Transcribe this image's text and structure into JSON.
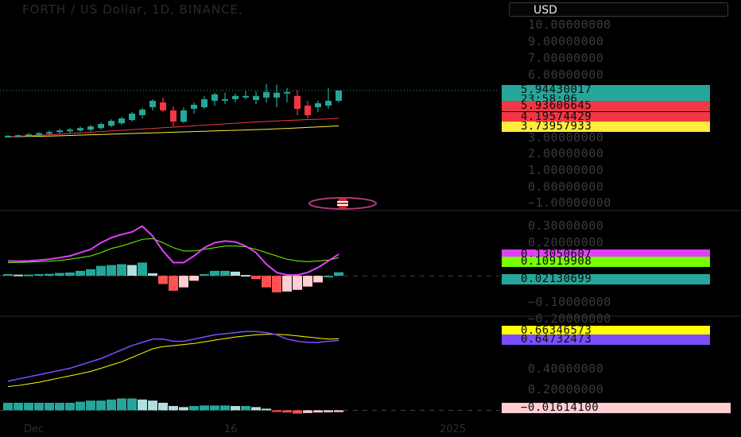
{
  "header": {
    "symbol_title": "FORTH / US Dollar, 1D, BINANCE,",
    "currency_label": "USD"
  },
  "price_axis": {
    "ticks": [
      "10.00000000",
      "9.00000000",
      "7.00000000",
      "6.00000000",
      "3.00000000",
      "2.00000000",
      "1.00000000",
      "0.00000000",
      "−1.00000000"
    ]
  },
  "price_tags": [
    {
      "text": "5.94430017",
      "bg": "#26a69a",
      "fg": "#0b0b0b"
    },
    {
      "text": "23:58:06",
      "bg": "#26a69a",
      "fg": "#0b0b0b"
    },
    {
      "text": "5.93606645",
      "bg": "#f23645",
      "fg": "#0b0b0b"
    },
    {
      "text": "4.19574429",
      "bg": "#f23645",
      "fg": "#0b0b0b"
    },
    {
      "text": "3.73957933",
      "bg": "#ffeb3b",
      "fg": "#0b0b0b"
    }
  ],
  "macd_axis": {
    "ticks": [
      "0.30000000",
      "0.20000000",
      "−0.10000000",
      "−0.20000000"
    ]
  },
  "macd_tags": [
    {
      "text": "0.13050607",
      "bg": "#e040fb",
      "fg": "#0b0b0b"
    },
    {
      "text": "0.10919908",
      "bg": "#76ff03",
      "fg": "#0b0b0b"
    },
    {
      "text": "0.02130699",
      "bg": "#26a69a",
      "fg": "#0b0b0b"
    }
  ],
  "osc_axis": {
    "ticks": [
      "0.40000000",
      "0.20000000"
    ]
  },
  "osc_tags": [
    {
      "text": "0.66346573",
      "bg": "#ffff00",
      "fg": "#0b0b0b"
    },
    {
      "text": "0.64732473",
      "bg": "#7c4dff",
      "fg": "#0b0b0b"
    },
    {
      "text": "−0.01614100",
      "bg": "#ffcdd2",
      "fg": "#0b0b0b"
    }
  ],
  "time_axis": {
    "labels": [
      "Dec",
      "16",
      "2025"
    ]
  },
  "chart_data": [
    {
      "type": "candlestick",
      "title": "FORTH / US Dollar, 1D, BINANCE",
      "ylim": [
        -1,
        10
      ],
      "candles": [
        {
          "o": 3.05,
          "h": 3.15,
          "l": 3.0,
          "c": 3.12
        },
        {
          "o": 3.1,
          "h": 3.2,
          "l": 3.0,
          "c": 3.15
        },
        {
          "o": 3.15,
          "h": 3.3,
          "l": 3.05,
          "c": 3.2
        },
        {
          "o": 3.2,
          "h": 3.35,
          "l": 3.1,
          "c": 3.28
        },
        {
          "o": 3.28,
          "h": 3.45,
          "l": 3.15,
          "c": 3.35
        },
        {
          "o": 3.35,
          "h": 3.55,
          "l": 3.25,
          "c": 3.45
        },
        {
          "o": 3.4,
          "h": 3.6,
          "l": 3.3,
          "c": 3.5
        },
        {
          "o": 3.45,
          "h": 3.7,
          "l": 3.35,
          "c": 3.6
        },
        {
          "o": 3.5,
          "h": 3.8,
          "l": 3.4,
          "c": 3.7
        },
        {
          "o": 3.6,
          "h": 3.95,
          "l": 3.5,
          "c": 3.85
        },
        {
          "o": 3.75,
          "h": 4.15,
          "l": 3.65,
          "c": 4.05
        },
        {
          "o": 3.9,
          "h": 4.3,
          "l": 3.8,
          "c": 4.2
        },
        {
          "o": 4.1,
          "h": 4.6,
          "l": 4.0,
          "c": 4.5
        },
        {
          "o": 4.4,
          "h": 4.85,
          "l": 4.2,
          "c": 4.75
        },
        {
          "o": 4.9,
          "h": 5.4,
          "l": 4.7,
          "c": 5.3
        },
        {
          "o": 5.2,
          "h": 5.5,
          "l": 4.6,
          "c": 4.7
        },
        {
          "o": 4.7,
          "h": 4.95,
          "l": 3.7,
          "c": 4.0
        },
        {
          "o": 4.0,
          "h": 4.9,
          "l": 3.9,
          "c": 4.7
        },
        {
          "o": 4.8,
          "h": 5.2,
          "l": 4.5,
          "c": 5.05
        },
        {
          "o": 4.9,
          "h": 5.6,
          "l": 4.8,
          "c": 5.4
        },
        {
          "o": 5.3,
          "h": 5.8,
          "l": 5.0,
          "c": 5.7
        },
        {
          "o": 5.3,
          "h": 5.8,
          "l": 5.1,
          "c": 5.4
        },
        {
          "o": 5.4,
          "h": 5.75,
          "l": 5.2,
          "c": 5.6
        },
        {
          "o": 5.6,
          "h": 5.9,
          "l": 5.4,
          "c": 5.6
        },
        {
          "o": 5.35,
          "h": 5.9,
          "l": 5.1,
          "c": 5.6
        },
        {
          "o": 5.5,
          "h": 6.35,
          "l": 5.2,
          "c": 5.85
        },
        {
          "o": 5.5,
          "h": 6.3,
          "l": 4.9,
          "c": 5.8
        },
        {
          "o": 5.8,
          "h": 6.1,
          "l": 5.2,
          "c": 5.85
        },
        {
          "o": 5.6,
          "h": 5.95,
          "l": 4.4,
          "c": 4.8
        },
        {
          "o": 5.0,
          "h": 5.3,
          "l": 4.2,
          "c": 4.4
        },
        {
          "o": 4.9,
          "h": 5.3,
          "l": 4.6,
          "c": 5.15
        },
        {
          "o": 5.0,
          "h": 6.1,
          "l": 4.8,
          "c": 5.3
        },
        {
          "o": 5.3,
          "h": 5.95,
          "l": 5.2,
          "c": 5.94
        }
      ],
      "series": [
        {
          "name": "MA slow",
          "color": "#ffeb3b",
          "values": [
            3.05,
            3.06,
            3.08,
            3.09,
            3.1,
            3.12,
            3.14,
            3.16,
            3.18,
            3.2,
            3.22,
            3.24,
            3.26,
            3.28,
            3.3,
            3.32,
            3.34,
            3.36,
            3.38,
            3.4,
            3.42,
            3.44,
            3.46,
            3.48,
            3.5,
            3.52,
            3.55,
            3.58,
            3.61,
            3.64,
            3.67,
            3.7,
            3.74
          ]
        },
        {
          "name": "MA fast",
          "color": "#f23645",
          "values": [
            3.05,
            3.08,
            3.12,
            3.15,
            3.18,
            3.22,
            3.26,
            3.3,
            3.34,
            3.38,
            3.42,
            3.46,
            3.5,
            3.54,
            3.58,
            3.62,
            3.66,
            3.7,
            3.74,
            3.78,
            3.82,
            3.86,
            3.9,
            3.94,
            3.98,
            4.01,
            4.04,
            4.07,
            4.1,
            4.13,
            4.15,
            4.17,
            4.2
          ]
        }
      ],
      "last_price": 5.94430017
    },
    {
      "type": "bar",
      "title": "MACD",
      "ylim": [
        -0.23,
        0.38
      ],
      "macd_line": [
        0.09,
        0.088,
        0.09,
        0.095,
        0.1,
        0.11,
        0.12,
        0.14,
        0.16,
        0.2,
        0.23,
        0.25,
        0.265,
        0.3,
        0.24,
        0.15,
        0.08,
        0.08,
        0.12,
        0.17,
        0.2,
        0.21,
        0.205,
        0.18,
        0.14,
        0.07,
        0.02,
        0.005,
        0.005,
        0.02,
        0.05,
        0.09,
        0.1305
      ],
      "signal_line": [
        0.08,
        0.081,
        0.083,
        0.085,
        0.088,
        0.093,
        0.1,
        0.11,
        0.12,
        0.14,
        0.165,
        0.18,
        0.2,
        0.22,
        0.225,
        0.2,
        0.17,
        0.15,
        0.15,
        0.16,
        0.17,
        0.18,
        0.18,
        0.175,
        0.16,
        0.14,
        0.12,
        0.1,
        0.09,
        0.085,
        0.09,
        0.095,
        0.1092
      ],
      "histogram": [
        0.01,
        0.007,
        0.007,
        0.01,
        0.012,
        0.017,
        0.02,
        0.03,
        0.04,
        0.06,
        0.065,
        0.07,
        0.065,
        0.08,
        0.015,
        -0.05,
        -0.09,
        -0.07,
        -0.03,
        0.01,
        0.03,
        0.03,
        0.025,
        0.005,
        -0.02,
        -0.07,
        -0.1,
        -0.095,
        -0.085,
        -0.065,
        -0.04,
        0.0,
        0.0213
      ]
    },
    {
      "type": "line",
      "title": "Oscillator",
      "ylim": [
        -0.1,
        0.85
      ],
      "fast_line": [
        0.27,
        0.29,
        0.31,
        0.33,
        0.35,
        0.37,
        0.39,
        0.42,
        0.45,
        0.48,
        0.52,
        0.56,
        0.6,
        0.63,
        0.66,
        0.66,
        0.64,
        0.64,
        0.66,
        0.68,
        0.7,
        0.71,
        0.72,
        0.73,
        0.73,
        0.72,
        0.7,
        0.66,
        0.64,
        0.63,
        0.63,
        0.64,
        0.6473
      ],
      "slow_line": [
        0.22,
        0.23,
        0.245,
        0.26,
        0.28,
        0.3,
        0.32,
        0.34,
        0.36,
        0.39,
        0.42,
        0.45,
        0.49,
        0.53,
        0.57,
        0.59,
        0.6,
        0.61,
        0.62,
        0.635,
        0.65,
        0.665,
        0.68,
        0.69,
        0.7,
        0.705,
        0.705,
        0.7,
        0.69,
        0.68,
        0.67,
        0.66,
        0.6635
      ],
      "histogram": [
        0.07,
        0.07,
        0.07,
        0.07,
        0.07,
        0.07,
        0.07,
        0.08,
        0.09,
        0.09,
        0.1,
        0.11,
        0.11,
        0.1,
        0.09,
        0.07,
        0.04,
        0.03,
        0.04,
        0.045,
        0.045,
        0.045,
        0.04,
        0.04,
        0.03,
        0.015,
        -0.005,
        -0.02,
        -0.03,
        -0.025,
        -0.02,
        -0.018,
        -0.016141
      ]
    }
  ]
}
